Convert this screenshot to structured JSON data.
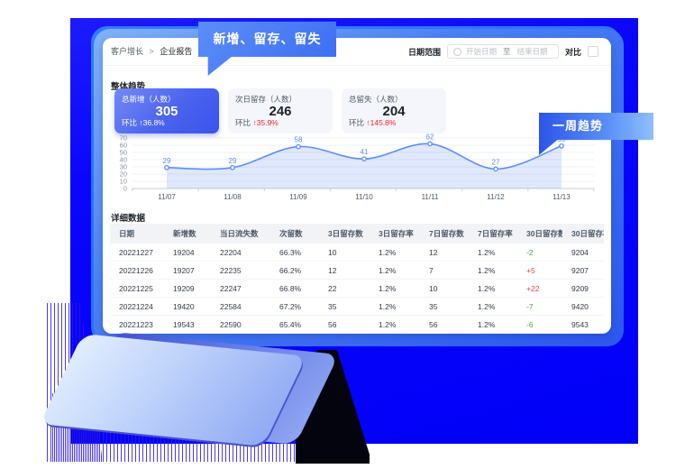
{
  "callouts": {
    "top_bubble": "新增、留存、留失",
    "side_ribbon": "一周趋势"
  },
  "breadcrumb": {
    "parent": "客户增长",
    "separator": ">",
    "current": "企业报告"
  },
  "filters": {
    "date_range_label": "日期范围",
    "start_placeholder": "开始日期",
    "to_label": "至",
    "end_placeholder": "结束日期",
    "compare_label": "对比",
    "compare_checked": false
  },
  "overview": {
    "section_title": "整体趋势",
    "stats": [
      {
        "label": "总新增（人数）",
        "value": "305",
        "wow_label": "环比",
        "arrow": "↑",
        "change": "36.8%",
        "highlighted": true
      },
      {
        "label": "次日留存（人数）",
        "value": "246",
        "wow_label": "环比",
        "arrow": "↑",
        "change": "35.9%",
        "highlighted": false
      },
      {
        "label": "总留失（人数）",
        "value": "204",
        "wow_label": "环比",
        "arrow": "↑",
        "change": "145.8%",
        "highlighted": false
      }
    ]
  },
  "chart_data": {
    "type": "area",
    "x": [
      "11/07",
      "11/08",
      "11/09",
      "11/10",
      "11/11",
      "11/12",
      "11/13"
    ],
    "series": [
      {
        "name": "新增",
        "values": [
          29,
          29,
          58,
          41,
          62,
          27,
          59
        ]
      }
    ],
    "ylim": [
      0,
      70
    ],
    "ytick_step": 10,
    "grid": true,
    "smooth": true,
    "point_labels": true,
    "legend": "none"
  },
  "table": {
    "section_title": "详细数据",
    "headers": [
      "日期",
      "新增数",
      "当日流失数",
      "次留数",
      "3日留存数",
      "3日留存率",
      "7日留存数",
      "7日留存率",
      "30日留存数",
      "30日留存率"
    ],
    "rows": [
      [
        "20221227",
        "19204",
        "22204",
        "66.3%",
        "10",
        "1.2%",
        "12",
        "1.2%",
        "-2",
        "9204"
      ],
      [
        "20221226",
        "19207",
        "22235",
        "66.2%",
        "12",
        "1.2%",
        "7",
        "1.2%",
        "+5",
        "9207"
      ],
      [
        "20221225",
        "19209",
        "22247",
        "66.8%",
        "22",
        "1.2%",
        "10",
        "1.2%",
        "+22",
        "9209"
      ],
      [
        "20221224",
        "19420",
        "22584",
        "67.2%",
        "35",
        "1.2%",
        "35",
        "1.2%",
        "-7",
        "9420"
      ],
      [
        "20221223",
        "19543",
        "22590",
        "65.4%",
        "56",
        "1.2%",
        "56",
        "1.2%",
        "-6",
        "9543"
      ]
    ],
    "delta_column_index": 8
  },
  "colors": {
    "accent_blue": "#3a6cf2",
    "chart_line": "#5b8ff9",
    "chart_fill": "rgba(100,140,240,0.20)",
    "positive_red": "#f53f3f",
    "negative_green": "#3dae3f",
    "background_blue": "#0a05fb"
  }
}
